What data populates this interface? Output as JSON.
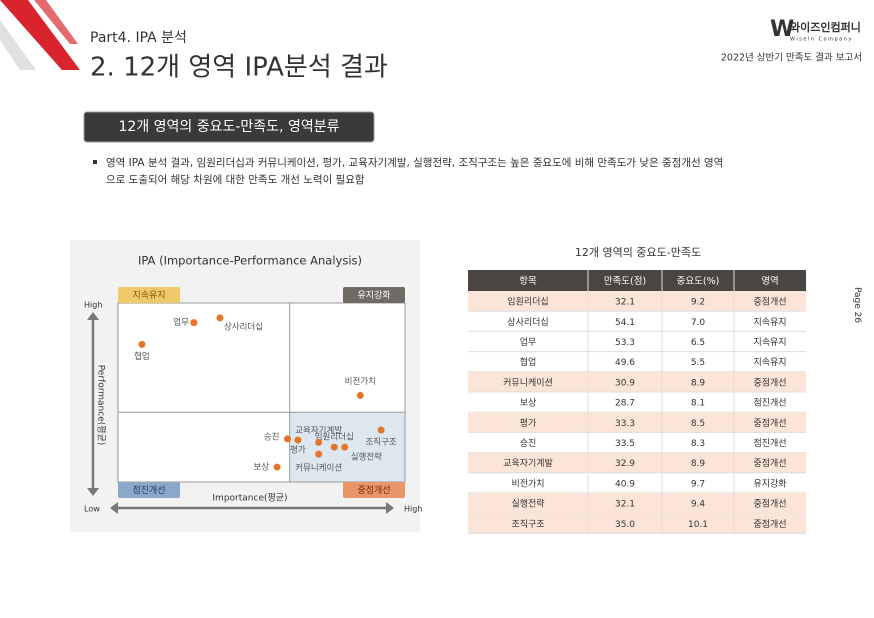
{
  "header": {
    "part": "Part4. IPA 분석",
    "title": "2. 12개 영역 IPA분석 결과",
    "logo": "와이즈인컴퍼니",
    "logo_sub": "Wiseln Company",
    "report": "2022년 상반기 만족도 결과 보고서"
  },
  "section": "12개 영역의 중요도-만족도, 영역분류",
  "bullet": [
    "영역 IPA 분석 결과, 임원리더십과 커뮤니케이션, 평가, 교육자기계발, 실행전략, 조직구조는 높은 중요도에 비해 만족도가 낮은 중점개선 영역",
    "으로 도출되어 해당 차원에 대한 만족도 개선 노력이 필요함"
  ],
  "chart": {
    "title": "IPA (Importance-Performance Analysis)",
    "quadrants": [
      "지속유지",
      "유지강화",
      "점진개선",
      "중점개선"
    ],
    "y_high": "High",
    "y_low": "Low",
    "x_high": "High",
    "x_label": "Importance(평균)",
    "y_label": "Performance(평균)"
  },
  "table": {
    "title": "12개 영역의 중요도-만족도",
    "columns": [
      "항목",
      "만족도(점)",
      "중요도(%)",
      "영역"
    ],
    "rows": [
      [
        "임원리더십",
        "32.1",
        "9.2",
        "중점개선"
      ],
      [
        "상사리더십",
        "54.1",
        "7.0",
        "지속유지"
      ],
      [
        "업무",
        "53.3",
        "6.5",
        "지속유지"
      ],
      [
        "협업",
        "49.6",
        "5.5",
        "지속유지"
      ],
      [
        "커뮤니케이션",
        "30.9",
        "8.9",
        "중점개선"
      ],
      [
        "보상",
        "28.7",
        "8.1",
        "점진개선"
      ],
      [
        "평가",
        "33.3",
        "8.5",
        "중점개선"
      ],
      [
        "승진",
        "33.5",
        "8.3",
        "점진개선"
      ],
      [
        "교육자기계발",
        "32.9",
        "8.9",
        "중점개선"
      ],
      [
        "비전가치",
        "40.9",
        "9.7",
        "유지강화"
      ],
      [
        "실행전략",
        "32.1",
        "9.4",
        "중점개선"
      ],
      [
        "조직구조",
        "35.0",
        "10.1",
        "중점개선"
      ]
    ]
  },
  "page": {
    "label": "Page",
    "number": "26"
  }
}
